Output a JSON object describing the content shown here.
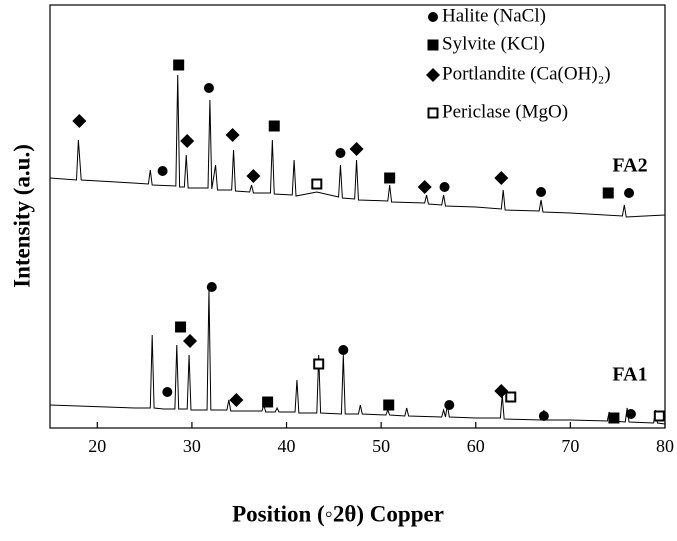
{
  "chart_data": {
    "type": "line",
    "xlabel": "Position (◦2θ) Copper",
    "ylabel": "Intensity (a.u.)",
    "xlim": [
      15,
      80
    ],
    "xticks": [
      20,
      30,
      40,
      50,
      60,
      70,
      80
    ],
    "ylim": [
      0,
      423
    ],
    "series": [
      {
        "name": "FA2",
        "color": "#000000",
        "x": [
          15,
          17.8,
          18.0,
          18.3,
          22,
          25.4,
          25.6,
          25.8,
          28.3,
          28.5,
          28.7,
          29.2,
          29.4,
          29.6,
          31.7,
          31.9,
          32.1,
          32.5,
          32.7,
          34.2,
          34.4,
          34.6,
          36.1,
          36.3,
          36.5,
          38.3,
          38.5,
          38.7,
          40.6,
          40.8,
          41.0,
          43.2,
          45.5,
          45.7,
          45.9,
          47.2,
          47.4,
          47.6,
          50.7,
          50.9,
          51.1,
          54.6,
          54.8,
          55.0,
          56.4,
          56.6,
          56.8,
          60,
          62.7,
          62.9,
          63.1,
          66.7,
          66.9,
          67.1,
          70,
          75.5,
          75.7,
          75.9,
          80
        ],
        "values": [
          250,
          248,
          288,
          248,
          246,
          244,
          258,
          243,
          242,
          353,
          241,
          241,
          273,
          240,
          240,
          328,
          239,
          263,
          238,
          238,
          278,
          237,
          236,
          243,
          235,
          235,
          288,
          234,
          233,
          268,
          232,
          236,
          231,
          263,
          230,
          229,
          268,
          228,
          227,
          243,
          226,
          225,
          233,
          224,
          223,
          233,
          222,
          221,
          219,
          238,
          218,
          217,
          228,
          216,
          215,
          212,
          223,
          211,
          213
        ]
      },
      {
        "name": "FA1",
        "color": "#000000",
        "x": [
          15,
          18,
          21,
          24,
          25.6,
          25.8,
          26.0,
          27,
          28.2,
          28.4,
          28.6,
          29.5,
          29.7,
          29.9,
          31.6,
          31.8,
          32.0,
          33.7,
          33.9,
          34.1,
          37.4,
          37.6,
          37.8,
          38.8,
          39.0,
          39.2,
          40.9,
          41.1,
          41.3,
          43.2,
          43.4,
          43.6,
          45.8,
          46.0,
          46.2,
          47.6,
          47.8,
          48,
          50.5,
          50.7,
          50.9,
          52.5,
          52.7,
          52.9,
          56.4,
          56.6,
          56.8,
          57.0,
          57.2,
          60,
          62.6,
          62.8,
          63.0,
          67.0,
          67.2,
          67.4,
          70,
          73.9,
          74.1,
          74.3,
          75.8,
          76,
          76.2,
          78.8,
          79,
          79.2,
          80
        ],
        "values": [
          23,
          22,
          21,
          20,
          20,
          93,
          20,
          19,
          19,
          83,
          19,
          19,
          73,
          18,
          18,
          138,
          18,
          18,
          28,
          17,
          17,
          23,
          16,
          16,
          20,
          16,
          16,
          48,
          15,
          15,
          73,
          15,
          14,
          73,
          14,
          14,
          23,
          14,
          13,
          18,
          13,
          12,
          20,
          12,
          11,
          18,
          11,
          23,
          11,
          10,
          10,
          33,
          9,
          8,
          18,
          8,
          8,
          7,
          16,
          7,
          6,
          20,
          6,
          5,
          18,
          5,
          4
        ]
      }
    ],
    "markers": [
      {
        "name": "Halite (NaCl)",
        "symbol": "circle",
        "color": "#000000",
        "x": [
          26.9,
          31.8,
          45.7,
          56.7,
          66.9,
          76.2,
          27.4,
          32.1,
          46,
          57.2,
          67.2,
          76.4
        ],
        "values": [
          257,
          340,
          275,
          241,
          236,
          235,
          36,
          141,
          78,
          23,
          12,
          14
        ]
      },
      {
        "name": "Sylvite (KCl)",
        "symbol": "square",
        "color": "#000000",
        "x": [
          28.6,
          38.7,
          50.9,
          74,
          28.8,
          38,
          50.8,
          74.6
        ],
        "values": [
          363,
          302,
          250,
          235,
          101,
          26,
          23,
          10
        ]
      },
      {
        "name": "Portlandite (Ca(OH)₂)",
        "symbol": "diamond",
        "color": "#000000",
        "x": [
          18.1,
          29.5,
          34.3,
          36.5,
          47.4,
          54.6,
          62.7,
          29.8,
          34.7,
          62.7
        ],
        "values": [
          307,
          287,
          293,
          252,
          279,
          241,
          250,
          87,
          28,
          37
        ]
      },
      {
        "name": "Periclase (MgO)",
        "symbol": "open-square",
        "color": "#000000",
        "x": [
          43.2,
          43.4,
          63.7,
          79.4
        ],
        "values": [
          244,
          64,
          31,
          12
        ]
      }
    ]
  }
}
